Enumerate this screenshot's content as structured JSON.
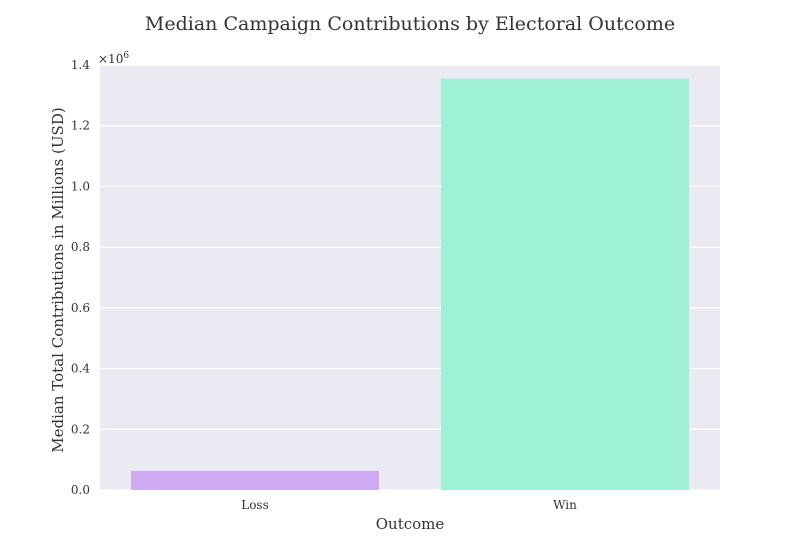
{
  "chart_data": {
    "type": "bar",
    "title": "Median Campaign Contributions by Electoral Outcome",
    "xlabel": "Outcome",
    "ylabel": "Median Total Contributions in Millions (USD)",
    "categories": [
      "Loss",
      "Win"
    ],
    "values": [
      63000,
      1355000
    ],
    "colors": [
      "#cdaaf2",
      "#9ef0d6"
    ],
    "ylim": [
      0,
      1400000
    ],
    "yticks": [
      0,
      200000,
      400000,
      600000,
      800000,
      1000000,
      1200000,
      1400000
    ],
    "ytick_labels": [
      "0.0",
      "0.2",
      "0.4",
      "0.6",
      "0.8",
      "1.0",
      "1.2",
      "1.4"
    ],
    "y_offset_label": "×10",
    "y_offset_exponent": "6",
    "grid": true,
    "background": "#eaeaf2",
    "gridline_color": "#ffffff"
  }
}
